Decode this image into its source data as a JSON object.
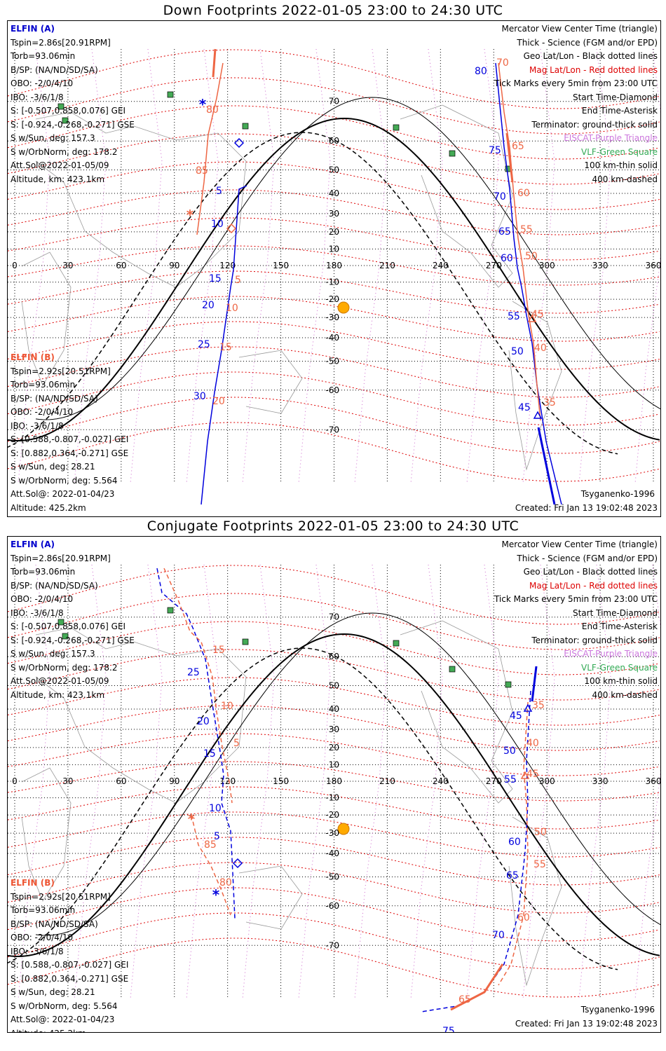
{
  "panels": [
    {
      "title": "Down Footprints 2022-01-05 23:00 to 24:30 UTC",
      "track_a": [
        [
          341,
          235
        ],
        [
          330,
          240
        ],
        [
          322,
          355
        ],
        [
          318,
          380
        ],
        [
          305,
          470
        ],
        [
          295,
          530
        ],
        [
          285,
          600
        ],
        [
          276,
          690
        ]
      ],
      "track_b": [
        [
          307,
          60
        ],
        [
          298,
          110
        ],
        [
          286,
          162
        ],
        [
          280,
          230
        ],
        [
          270,
          305
        ]
      ],
      "track_a2": [
        [
          696,
          60
        ],
        [
          702,
          120
        ],
        [
          708,
          180
        ],
        [
          716,
          240
        ],
        [
          722,
          310
        ],
        [
          727,
          352
        ],
        [
          733,
          380
        ],
        [
          740,
          420
        ],
        [
          748,
          460
        ],
        [
          755,
          520
        ],
        [
          768,
          600
        ],
        [
          790,
          690
        ]
      ],
      "track_b2": [
        [
          700,
          60
        ],
        [
          708,
          130
        ],
        [
          716,
          180
        ],
        [
          722,
          250
        ],
        [
          728,
          310
        ],
        [
          735,
          352
        ],
        [
          743,
          420
        ],
        [
          750,
          460
        ],
        [
          755,
          520
        ],
        [
          760,
          570
        ]
      ]
    },
    {
      "title": "Conjugate Footprints 2022-01-05 23:00 to 24:30 UTC"
    }
  ],
  "elfin_a": {
    "name": "ELFIN (A)",
    "tspin": "Tspin=2.86s[20.91RPM]",
    "torb": "Torb=93.06min",
    "bsp": "B/SP: (NA/ND/SD/SA)",
    "obo": "OBO: -2/0/4/10",
    "ibo": "IBO: -3/6/1/8",
    "s_gei": "S: [-0.507,0.858,0.076] GEI",
    "s_gse": "S: [-0.924,-0.268,-0.271] GSE",
    "s_sun": "S w/Sun, deg: 157.3",
    "s_orb": "S w/OrbNorm, deg: 178.2",
    "att": "Att.Sol@2022-01-05/09",
    "alt": "Altitude, km: 423.1km"
  },
  "elfin_b": {
    "name": "ELFIN (B)",
    "tspin": "Tspin=2.92s[20.51RPM]",
    "torb": "Torb=93.06min",
    "bsp": "B/SP: (NA/ND/SD/SA)",
    "obo": "OBO: -2/0/4/10",
    "ibo": "IBO: -3/6/1/8",
    "s_gei": "S: [0.588,-0.807,-0.027] GEI",
    "s_gse": "S: [0.882,0.364,-0.271] GSE",
    "s_sun": "S w/Sun, deg: 28.21",
    "s_orb": "S w/OrbNorm, deg: 5.564",
    "att": "Att.Sol@: 2022-01-04/23",
    "alt": "Altitude: 425.2km"
  },
  "legend": {
    "l1": "Mercator View Center Time (triangle)",
    "l2": "Thick - Science (FGM and/or EPD)",
    "l3": "Geo Lat/Lon - Black dotted lines",
    "l4": "Mag Lat/Lon - Red dotted lines",
    "l5": "Tick Marks every 5min from 23:00 UTC",
    "l6": "Start Time-Diamond",
    "l7": "End Time-Asterisk",
    "l8": "Terminator: ground-thick solid",
    "l9": "EISCAT-Purple Triangle",
    "l10": "VLF-Green Square",
    "l11": "100 km-thin solid",
    "l12": "400 km-dashed"
  },
  "footer": {
    "model": "Tsyganenko-1996",
    "created": "Created: Fri Jan 13 19:02:48 2023"
  },
  "axis": {
    "lon": [
      "0",
      "30",
      "60",
      "90",
      "120",
      "150",
      "180",
      "210",
      "240",
      "270",
      "300",
      "330",
      "360"
    ],
    "lat_north": [
      "70",
      "60",
      "50",
      "40",
      "30",
      "20",
      "10"
    ],
    "lat_south": [
      "-10",
      "-20",
      "-30",
      "-40",
      "-50",
      "-60",
      "-70"
    ]
  },
  "labels_down": {
    "a_ticks": [
      "5",
      "10",
      "15",
      "20",
      "25",
      "30"
    ],
    "b_ticks": [
      "80",
      "85",
      "5",
      "10",
      "15",
      "20"
    ],
    "a_ticks_east": [
      "80",
      "75",
      "70",
      "65",
      "60",
      "55",
      "50",
      "45"
    ],
    "b_ticks_east": [
      "70",
      "65",
      "60",
      "55",
      "50",
      "45",
      "40",
      "35"
    ]
  },
  "labels_conj": {
    "a_ticks": [
      "25",
      "20",
      "15",
      "10",
      "5"
    ],
    "b_ticks": [
      "15",
      "10",
      "5",
      "85",
      "80"
    ],
    "a_ticks_east": [
      "45",
      "50",
      "55",
      "60",
      "65",
      "70",
      "75"
    ],
    "b_ticks_east": [
      "35",
      "40",
      "45",
      "50",
      "55",
      "60",
      "65"
    ]
  },
  "colors": {
    "elfin_a": "#0000dd",
    "elfin_b": "#ee6644",
    "mag_grid": "#dd0000",
    "geo_grid": "#000000",
    "eiscat": "#cc66cc",
    "vlf": "#44aa55",
    "sun": "#ffaa00"
  }
}
